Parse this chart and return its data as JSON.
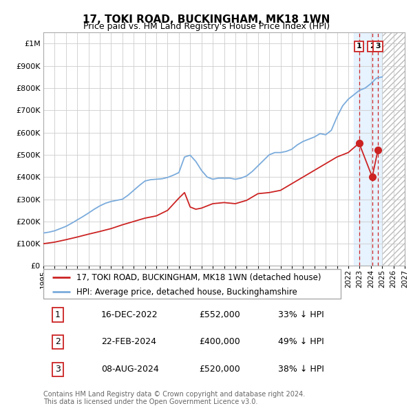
{
  "title": "17, TOKI ROAD, BUCKINGHAM, MK18 1WN",
  "subtitle": "Price paid vs. HM Land Registry's House Price Index (HPI)",
  "hpi_label": "HPI: Average price, detached house, Buckinghamshire",
  "price_label": "17, TOKI ROAD, BUCKINGHAM, MK18 1WN (detached house)",
  "footer1": "Contains HM Land Registry data © Crown copyright and database right 2024.",
  "footer2": "This data is licensed under the Open Government Licence v3.0.",
  "ylim": [
    0,
    1050000
  ],
  "xlim_start": 1995,
  "xlim_end": 2027,
  "yticks": [
    0,
    100000,
    200000,
    300000,
    400000,
    500000,
    600000,
    700000,
    800000,
    900000,
    1000000
  ],
  "ytick_labels": [
    "£0",
    "£100K",
    "£200K",
    "£300K",
    "£400K",
    "£500K",
    "£600K",
    "£700K",
    "£800K",
    "£900K",
    "£1M"
  ],
  "hpi_color": "#7aabdc",
  "price_color": "#cc2222",
  "dot_color": "#cc2222",
  "sale_points": [
    {
      "year": 2022.96,
      "price": 552000,
      "label": "1",
      "date": "16-DEC-2022",
      "price_str": "£552,000",
      "pct": "33% ↓ HPI"
    },
    {
      "year": 2024.12,
      "price": 400000,
      "label": "2",
      "date": "22-FEB-2024",
      "price_str": "£400,000",
      "pct": "49% ↓ HPI"
    },
    {
      "year": 2024.62,
      "price": 520000,
      "label": "3",
      "date": "08-AUG-2024",
      "price_str": "£520,000",
      "pct": "38% ↓ HPI"
    }
  ],
  "hpi_years": [
    1995,
    1995.5,
    1996,
    1996.5,
    1997,
    1997.5,
    1998,
    1998.5,
    1999,
    1999.5,
    2000,
    2000.5,
    2001,
    2001.5,
    2002,
    2002.5,
    2003,
    2003.5,
    2004,
    2004.5,
    2005,
    2005.5,
    2006,
    2006.5,
    2007,
    2007.5,
    2008,
    2008.5,
    2009,
    2009.5,
    2010,
    2010.5,
    2011,
    2011.5,
    2012,
    2012.5,
    2013,
    2013.5,
    2014,
    2014.5,
    2015,
    2015.5,
    2016,
    2016.5,
    2017,
    2017.5,
    2018,
    2018.5,
    2019,
    2019.5,
    2020,
    2020.5,
    2021,
    2021.5,
    2022,
    2022.5,
    2023,
    2023.5,
    2024,
    2024.5,
    2025
  ],
  "hpi_values": [
    148000,
    152000,
    158000,
    168000,
    178000,
    192000,
    207000,
    222000,
    238000,
    255000,
    270000,
    282000,
    290000,
    295000,
    300000,
    318000,
    340000,
    362000,
    382000,
    388000,
    390000,
    392000,
    398000,
    408000,
    420000,
    490000,
    498000,
    470000,
    430000,
    400000,
    390000,
    395000,
    395000,
    395000,
    390000,
    395000,
    405000,
    425000,
    450000,
    475000,
    500000,
    510000,
    510000,
    515000,
    525000,
    545000,
    560000,
    570000,
    580000,
    595000,
    590000,
    610000,
    670000,
    720000,
    750000,
    770000,
    790000,
    800000,
    820000,
    845000,
    850000
  ],
  "price_years": [
    1995,
    1996,
    1997,
    1998,
    1999,
    2000,
    2001,
    2002,
    2003,
    2004,
    2005,
    2006,
    2007,
    2007.5,
    2008,
    2008.5,
    2009,
    2009.5,
    2010,
    2011,
    2012,
    2013,
    2014,
    2015,
    2015.5,
    2016,
    2017,
    2018,
    2019,
    2020,
    2021,
    2022,
    2022.96,
    2024.12,
    2024.62
  ],
  "price_values": [
    100000,
    107000,
    118000,
    130000,
    143000,
    155000,
    168000,
    185000,
    200000,
    215000,
    225000,
    250000,
    305000,
    330000,
    265000,
    255000,
    260000,
    270000,
    280000,
    285000,
    280000,
    295000,
    325000,
    330000,
    335000,
    340000,
    370000,
    400000,
    430000,
    460000,
    490000,
    510000,
    552000,
    400000,
    520000
  ],
  "highlight_region_start": 2022.5,
  "highlight_region_end": 2025.0,
  "future_region_start": 2025.0,
  "future_region_end": 2027.5,
  "bg_color": "#ffffff",
  "grid_color": "#cccccc",
  "highlight_bg": "#ddeeff",
  "hatch_color": "#cccccc"
}
